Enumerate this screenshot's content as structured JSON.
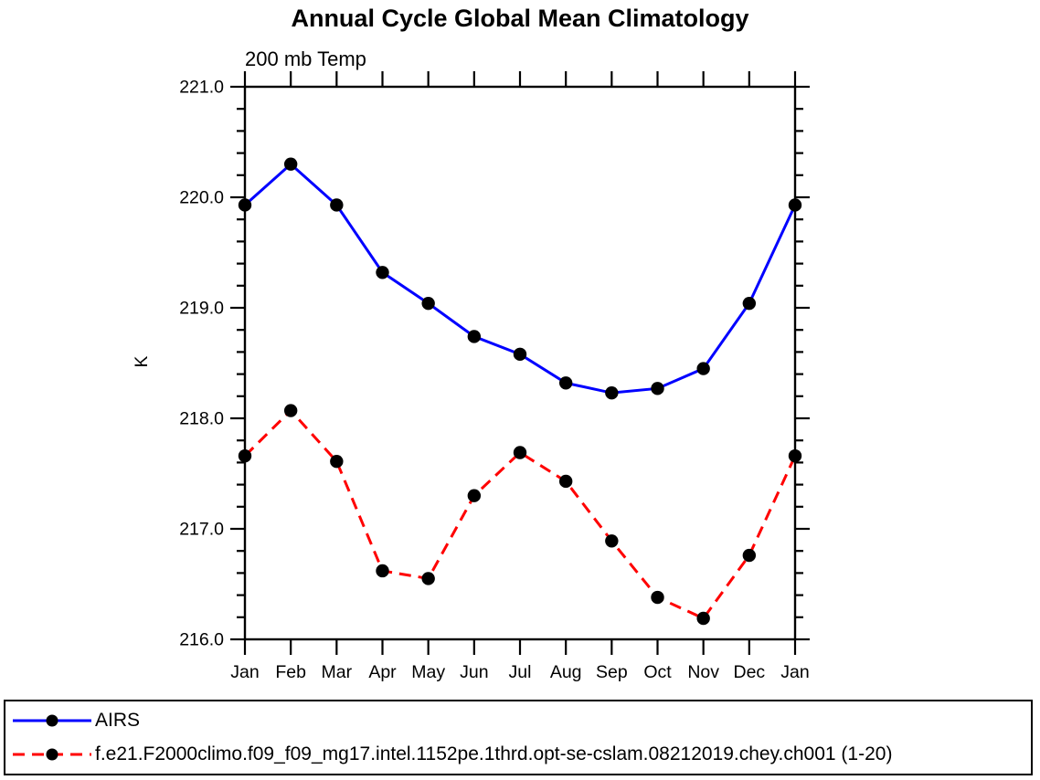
{
  "title": "Annual Cycle Global Mean Climatology",
  "subtitle": "200 mb Temp",
  "ylabel": "K",
  "chart_data": {
    "type": "line",
    "categories": [
      "Jan",
      "Feb",
      "Mar",
      "Apr",
      "May",
      "Jun",
      "Jul",
      "Aug",
      "Sep",
      "Oct",
      "Nov",
      "Dec",
      "Jan"
    ],
    "series": [
      {
        "name": "AIRS",
        "color": "#0000ff",
        "line_style": "solid",
        "marker": "filled-circle",
        "marker_color": "#000000",
        "values": [
          219.93,
          220.3,
          219.93,
          219.32,
          219.04,
          218.74,
          218.58,
          218.32,
          218.23,
          218.27,
          218.45,
          219.04,
          219.93
        ]
      },
      {
        "name": "f.e21.F2000climo.f09_f09_mg17.intel.1152pe.1thrd.opt-se-cslam.08212019.chey.ch001 (1-20)",
        "color": "#ff0000",
        "line_style": "dashed",
        "marker": "filled-circle",
        "marker_color": "#000000",
        "values": [
          217.66,
          218.07,
          217.61,
          216.62,
          216.55,
          217.3,
          217.69,
          217.43,
          216.89,
          216.38,
          216.19,
          216.76,
          217.66
        ]
      }
    ],
    "title": "Annual Cycle Global Mean Climatology",
    "subtitle": "200 mb Temp",
    "xlabel": "",
    "ylabel": "K",
    "ylim": [
      216.0,
      221.0
    ],
    "ytick_major": 1.0,
    "ytick_minor": 0.2,
    "ytick_labels": [
      "216.0",
      "217.0",
      "218.0",
      "219.0",
      "220.0",
      "221.0"
    ],
    "grid": false,
    "frame": "box-with-outward-ticks",
    "legend_position": "bottom"
  },
  "legend": {
    "entries": [
      {
        "label": "AIRS"
      },
      {
        "label": "f.e21.F2000climo.f09_f09_mg17.intel.1152pe.1thrd.opt-se-cslam.08212019.chey.ch001 (1-20)"
      }
    ]
  }
}
